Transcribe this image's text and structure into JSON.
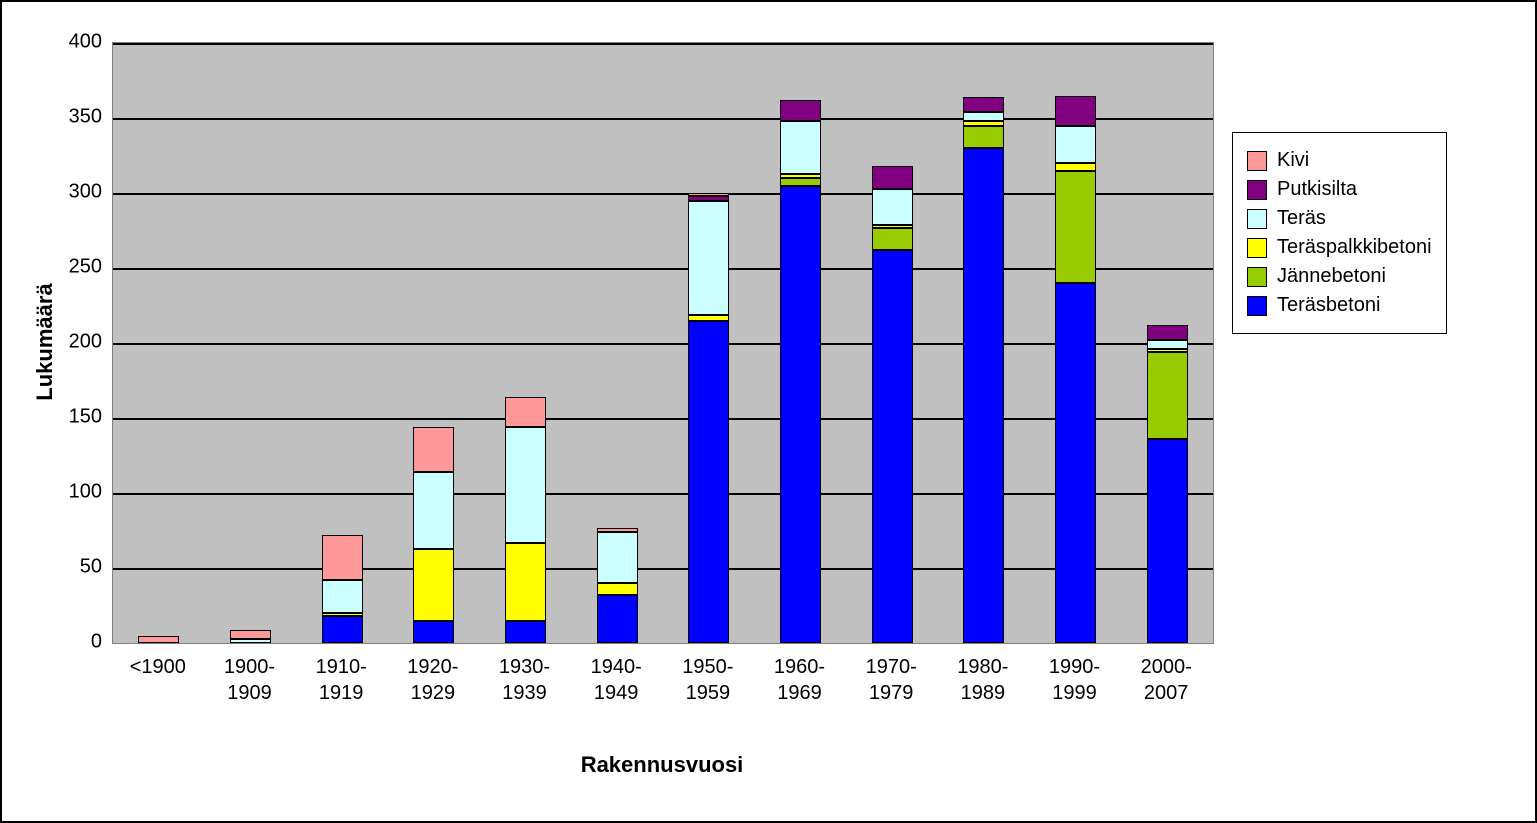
{
  "chart": {
    "type": "stacked_bar",
    "background_color": "#ffffff",
    "plot_background_color": "#c0c0c0",
    "grid_color": "#000000",
    "border_color": "#000000",
    "bar_width_ratio": 0.45,
    "x_axis": {
      "title": "Rakennusvuosi",
      "title_fontsize": 22,
      "tick_fontsize": 20,
      "categories": [
        "<1900",
        "1900-1909",
        "1910-1919",
        "1920-1929",
        "1930-1939",
        "1940-1949",
        "1950-1959",
        "1960-1969",
        "1970-1979",
        "1980-1989",
        "1990-1999",
        "2000-2007"
      ]
    },
    "y_axis": {
      "title": "Lukumäärä",
      "title_fontsize": 22,
      "tick_fontsize": 20,
      "min": 0,
      "max": 400,
      "tick_step": 50,
      "ticks": [
        0,
        50,
        100,
        150,
        200,
        250,
        300,
        350,
        400
      ]
    },
    "series": [
      {
        "key": "terasbetoni",
        "label": "Teräsbetoni",
        "color": "#0000ff"
      },
      {
        "key": "jannebetoni",
        "label": "Jännebetoni",
        "color": "#99cc00"
      },
      {
        "key": "teraspalkkibetoni",
        "label": "Teräspalkkibetoni",
        "color": "#ffff00"
      },
      {
        "key": "teras",
        "label": "Teräs",
        "color": "#ccffff"
      },
      {
        "key": "putkisilta",
        "label": "Putkisilta",
        "color": "#800080"
      },
      {
        "key": "kivi",
        "label": "Kivi",
        "color": "#ff9999"
      }
    ],
    "data": {
      "terasbetoni": [
        0,
        0,
        18,
        15,
        15,
        32,
        215,
        305,
        262,
        330,
        240,
        136
      ],
      "jannebetoni": [
        0,
        0,
        0,
        0,
        0,
        0,
        0,
        5,
        15,
        15,
        75,
        58
      ],
      "teraspalkkibetoni": [
        0,
        0,
        2,
        48,
        52,
        8,
        4,
        3,
        2,
        3,
        5,
        2
      ],
      "teras": [
        0,
        3,
        22,
        51,
        77,
        34,
        76,
        35,
        24,
        6,
        25,
        6
      ],
      "putkisilta": [
        0,
        0,
        0,
        0,
        0,
        0,
        3,
        14,
        15,
        10,
        20,
        10
      ],
      "kivi": [
        5,
        6,
        30,
        30,
        20,
        3,
        2,
        0,
        0,
        0,
        0,
        0
      ]
    },
    "legend": {
      "position": "right",
      "order": [
        "kivi",
        "putkisilta",
        "teras",
        "teraspalkkibetoni",
        "jannebetoni",
        "terasbetoni"
      ],
      "labels": {
        "kivi": "Kivi",
        "putkisilta": "Putkisilta",
        "teras": "Teräs",
        "teraspalkkibetoni": "Teräspalkkibetoni",
        "jannebetoni": "Jännebetoni",
        "terasbetoni": "Teräsbetoni"
      }
    }
  }
}
